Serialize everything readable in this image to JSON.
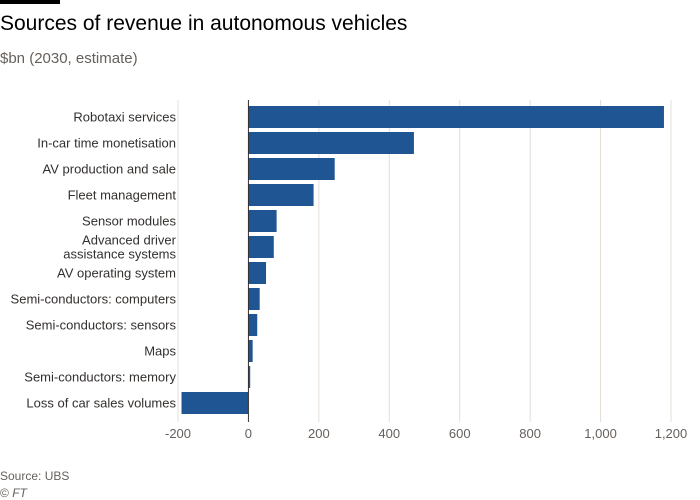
{
  "header": {
    "title": "Sources of revenue in autonomous vehicles",
    "subtitle": "$bn (2030, estimate)"
  },
  "footer": {
    "source": "Source: UBS",
    "credit_symbol": "©",
    "credit_name": "FT"
  },
  "colors": {
    "bar": "#1f5592",
    "grid": "#e4ddd6",
    "zero_line": "#33302e"
  },
  "chart_data": {
    "type": "bar",
    "orientation": "horizontal",
    "title": "Sources of revenue in autonomous vehicles",
    "subtitle": "$bn (2030, estimate)",
    "xlabel": "",
    "ylabel": "",
    "categories": [
      "Robotaxi services",
      "In-car time monetisation",
      "AV production and sale",
      "Fleet management",
      "Sensor modules",
      "Advanced driver assistance systems",
      "AV operating system",
      "Semi-conductors: computers",
      "Semi-conductors: sensors",
      "Maps",
      "Semi-conductors: memory",
      "Loss of car sales volumes"
    ],
    "category_display_lines": [
      [
        "Robotaxi services"
      ],
      [
        "In-car time monetisation"
      ],
      [
        "AV production and sale"
      ],
      [
        "Fleet management"
      ],
      [
        "Sensor modules"
      ],
      [
        "Advanced driver",
        "assistance systems"
      ],
      [
        "AV operating system"
      ],
      [
        "Semi-conductors: computers"
      ],
      [
        "Semi-conductors: sensors"
      ],
      [
        "Maps"
      ],
      [
        "Semi-conductors: memory"
      ],
      [
        "Loss of car sales volumes"
      ]
    ],
    "values": [
      1180,
      470,
      245,
      185,
      80,
      72,
      50,
      32,
      25,
      12,
      5,
      -190
    ],
    "xlim": [
      -200,
      1200
    ],
    "x_ticks": [
      -200,
      0,
      200,
      400,
      600,
      800,
      1000,
      1200
    ],
    "x_tick_labels": [
      "-200",
      "0",
      "200",
      "400",
      "600",
      "800",
      "1,000",
      "1,200"
    ],
    "grid": true,
    "legend": "none"
  }
}
